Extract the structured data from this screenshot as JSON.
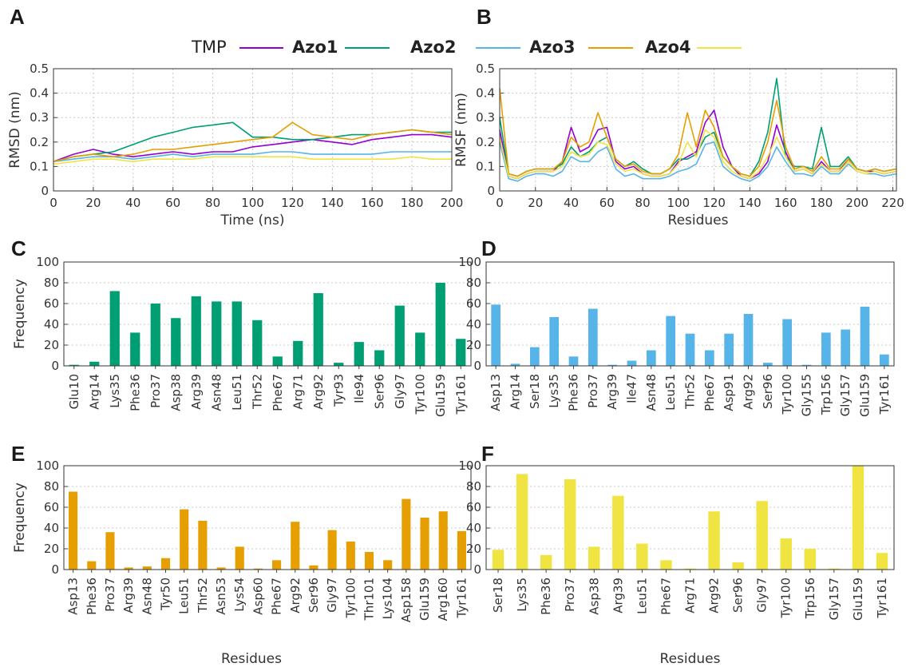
{
  "legend": {
    "entries": [
      {
        "label": "TMP",
        "color": "#9400d3",
        "bold": false
      },
      {
        "label": "Azo1",
        "color": "#009e73",
        "bold": true
      },
      {
        "label": "Azo2",
        "color": "#56b4e9",
        "bold": true
      },
      {
        "label": "Azo3",
        "color": "#e69f00",
        "bold": true
      },
      {
        "label": "Azo4",
        "color": "#f0e442",
        "bold": true
      }
    ]
  },
  "chart_data": [
    {
      "id": "A",
      "panel_label": "A",
      "type": "line",
      "xlabel": "Time (ns)",
      "ylabel": "RMSD (nm)",
      "xlim": [
        0,
        200
      ],
      "ylim": [
        0,
        0.5
      ],
      "xticks": [
        0,
        20,
        40,
        60,
        80,
        100,
        120,
        140,
        160,
        180,
        200
      ],
      "yticks": [
        0,
        0.1,
        0.2,
        0.3,
        0.4,
        0.5
      ],
      "grid": true,
      "x": [
        0,
        10,
        20,
        30,
        40,
        50,
        60,
        70,
        80,
        90,
        100,
        110,
        120,
        130,
        140,
        150,
        160,
        170,
        180,
        190,
        200
      ],
      "series": [
        {
          "name": "TMP",
          "color": "#9400d3",
          "values": [
            0.12,
            0.15,
            0.17,
            0.15,
            0.14,
            0.15,
            0.16,
            0.15,
            0.16,
            0.16,
            0.18,
            0.19,
            0.2,
            0.21,
            0.2,
            0.19,
            0.21,
            0.22,
            0.23,
            0.23,
            0.22
          ]
        },
        {
          "name": "Azo1",
          "color": "#009e73",
          "values": [
            0.12,
            0.14,
            0.15,
            0.16,
            0.19,
            0.22,
            0.24,
            0.26,
            0.27,
            0.28,
            0.22,
            0.22,
            0.21,
            0.21,
            0.22,
            0.23,
            0.23,
            0.24,
            0.25,
            0.24,
            0.24
          ]
        },
        {
          "name": "Azo2",
          "color": "#56b4e9",
          "values": [
            0.12,
            0.13,
            0.14,
            0.14,
            0.13,
            0.14,
            0.15,
            0.14,
            0.15,
            0.15,
            0.15,
            0.16,
            0.16,
            0.15,
            0.15,
            0.15,
            0.15,
            0.16,
            0.16,
            0.16,
            0.16
          ]
        },
        {
          "name": "Azo3",
          "color": "#e69f00",
          "values": [
            0.12,
            0.14,
            0.15,
            0.14,
            0.15,
            0.17,
            0.17,
            0.18,
            0.19,
            0.2,
            0.21,
            0.22,
            0.28,
            0.23,
            0.22,
            0.21,
            0.23,
            0.24,
            0.25,
            0.24,
            0.23
          ]
        },
        {
          "name": "Azo4",
          "color": "#f0e442",
          "values": [
            0.11,
            0.12,
            0.13,
            0.13,
            0.12,
            0.13,
            0.13,
            0.13,
            0.14,
            0.14,
            0.14,
            0.14,
            0.14,
            0.13,
            0.13,
            0.13,
            0.13,
            0.13,
            0.14,
            0.13,
            0.13
          ]
        }
      ]
    },
    {
      "id": "B",
      "panel_label": "B",
      "type": "line",
      "xlabel": "Residues",
      "ylabel": "RMSF (nm)",
      "xlim": [
        0,
        222
      ],
      "ylim": [
        0,
        0.5
      ],
      "xticks": [
        0,
        20,
        40,
        60,
        80,
        100,
        120,
        140,
        160,
        180,
        200,
        220
      ],
      "yticks": [
        0,
        0.1,
        0.2,
        0.3,
        0.4,
        0.5
      ],
      "grid": true,
      "x": [
        0,
        5,
        10,
        15,
        20,
        25,
        30,
        35,
        40,
        45,
        50,
        55,
        60,
        65,
        70,
        75,
        80,
        85,
        90,
        95,
        100,
        105,
        110,
        115,
        120,
        125,
        130,
        135,
        140,
        145,
        150,
        155,
        160,
        165,
        170,
        175,
        180,
        185,
        190,
        195,
        200,
        205,
        210,
        215,
        222
      ],
      "series": [
        {
          "name": "TMP",
          "color": "#9400d3",
          "values": [
            0.25,
            0.06,
            0.05,
            0.07,
            0.08,
            0.08,
            0.08,
            0.12,
            0.26,
            0.16,
            0.18,
            0.25,
            0.26,
            0.12,
            0.09,
            0.1,
            0.07,
            0.06,
            0.06,
            0.07,
            0.12,
            0.14,
            0.16,
            0.28,
            0.33,
            0.18,
            0.1,
            0.06,
            0.05,
            0.07,
            0.12,
            0.27,
            0.16,
            0.08,
            0.09,
            0.07,
            0.12,
            0.08,
            0.08,
            0.13,
            0.09,
            0.08,
            0.08,
            0.07,
            0.08
          ]
        },
        {
          "name": "Azo1",
          "color": "#009e73",
          "values": [
            0.3,
            0.07,
            0.06,
            0.08,
            0.09,
            0.09,
            0.09,
            0.11,
            0.18,
            0.14,
            0.16,
            0.2,
            0.22,
            0.13,
            0.1,
            0.12,
            0.09,
            0.07,
            0.07,
            0.09,
            0.13,
            0.13,
            0.15,
            0.22,
            0.24,
            0.14,
            0.1,
            0.07,
            0.06,
            0.12,
            0.24,
            0.46,
            0.14,
            0.1,
            0.1,
            0.09,
            0.26,
            0.1,
            0.1,
            0.14,
            0.09,
            0.08,
            0.09,
            0.08,
            0.09
          ]
        },
        {
          "name": "Azo2",
          "color": "#56b4e9",
          "values": [
            0.2,
            0.05,
            0.04,
            0.06,
            0.07,
            0.07,
            0.06,
            0.08,
            0.14,
            0.12,
            0.12,
            0.16,
            0.18,
            0.09,
            0.06,
            0.07,
            0.05,
            0.05,
            0.05,
            0.06,
            0.08,
            0.09,
            0.11,
            0.19,
            0.2,
            0.1,
            0.07,
            0.05,
            0.04,
            0.06,
            0.1,
            0.18,
            0.12,
            0.07,
            0.07,
            0.06,
            0.1,
            0.07,
            0.07,
            0.11,
            0.08,
            0.07,
            0.07,
            0.06,
            0.07
          ]
        },
        {
          "name": "Azo3",
          "color": "#e69f00",
          "values": [
            0.42,
            0.07,
            0.06,
            0.08,
            0.09,
            0.09,
            0.09,
            0.12,
            0.22,
            0.18,
            0.2,
            0.32,
            0.22,
            0.13,
            0.1,
            0.11,
            0.08,
            0.07,
            0.07,
            0.09,
            0.15,
            0.32,
            0.18,
            0.33,
            0.26,
            0.14,
            0.1,
            0.07,
            0.06,
            0.1,
            0.2,
            0.37,
            0.18,
            0.09,
            0.1,
            0.08,
            0.14,
            0.09,
            0.09,
            0.13,
            0.09,
            0.08,
            0.09,
            0.08,
            0.09
          ]
        },
        {
          "name": "Azo4",
          "color": "#f0e442",
          "values": [
            0.22,
            0.06,
            0.05,
            0.07,
            0.08,
            0.08,
            0.08,
            0.1,
            0.16,
            0.14,
            0.15,
            0.2,
            0.19,
            0.11,
            0.08,
            0.09,
            0.07,
            0.06,
            0.06,
            0.07,
            0.11,
            0.2,
            0.14,
            0.25,
            0.22,
            0.12,
            0.08,
            0.06,
            0.05,
            0.08,
            0.14,
            0.22,
            0.14,
            0.08,
            0.09,
            0.07,
            0.11,
            0.08,
            0.08,
            0.12,
            0.08,
            0.07,
            0.08,
            0.07,
            0.08
          ]
        }
      ]
    },
    {
      "id": "C",
      "panel_label": "C",
      "type": "bar",
      "ylabel": "Frequency",
      "xlabel": "",
      "ylim": [
        0,
        100
      ],
      "yticks": [
        0,
        20,
        40,
        60,
        80,
        100
      ],
      "grid": true,
      "color": "#009e73",
      "categories": [
        "Glu10",
        "Arg14",
        "Lys35",
        "Phe36",
        "Pro37",
        "Asp38",
        "Arg39",
        "Asn48",
        "Leu51",
        "Thr52",
        "Phe67",
        "Arg71",
        "Arg92",
        "Tyr93",
        "Ile94",
        "Ser96",
        "Gly97",
        "Tyr100",
        "Glu159",
        "Tyr161"
      ],
      "values": [
        1,
        4,
        72,
        32,
        60,
        46,
        67,
        62,
        62,
        44,
        9,
        24,
        70,
        3,
        23,
        15,
        58,
        32,
        80,
        26
      ]
    },
    {
      "id": "D",
      "panel_label": "D",
      "type": "bar",
      "ylabel": "",
      "xlabel": "",
      "ylim": [
        0,
        100
      ],
      "yticks": [
        0,
        20,
        40,
        60,
        80,
        100
      ],
      "grid": true,
      "color": "#56b4e9",
      "categories": [
        "Asp13",
        "Arg14",
        "Ser18",
        "Lys35",
        "Phe36",
        "Pro37",
        "Arg39",
        "Ile47",
        "Asn48",
        "Leu51",
        "Thr52",
        "Phe67",
        "Asp91",
        "Arg92",
        "Ser96",
        "Tyr100",
        "Gly155",
        "Trp156",
        "Gly157",
        "Glu159",
        "Tyr161"
      ],
      "values": [
        59,
        2,
        18,
        47,
        9,
        55,
        1,
        5,
        15,
        48,
        31,
        15,
        31,
        50,
        3,
        45,
        1,
        32,
        35,
        57,
        11
      ]
    },
    {
      "id": "E",
      "panel_label": "E",
      "type": "bar",
      "ylabel": "Frequency",
      "xlabel": "Residues",
      "ylim": [
        0,
        100
      ],
      "yticks": [
        0,
        20,
        40,
        60,
        80,
        100
      ],
      "grid": true,
      "color": "#e69f00",
      "categories": [
        "Asp13",
        "Phe36",
        "Pro37",
        "Arg39",
        "Asn48",
        "Tyr50",
        "Leu51",
        "Thr52",
        "Asn53",
        "Lys54",
        "Asp60",
        "Phe67",
        "Arg92",
        "Ser96",
        "Gly97",
        "Tyr100",
        "Thr101",
        "Lys104",
        "Asp158",
        "Glu159",
        "Arg160",
        "Tyr161"
      ],
      "values": [
        75,
        8,
        36,
        2,
        3,
        11,
        58,
        47,
        2,
        22,
        1,
        9,
        46,
        4,
        38,
        27,
        17,
        9,
        68,
        50,
        56,
        37
      ]
    },
    {
      "id": "F",
      "panel_label": "F",
      "type": "bar",
      "ylabel": "",
      "xlabel": "Residues",
      "ylim": [
        0,
        100
      ],
      "yticks": [
        0,
        20,
        40,
        60,
        80,
        100
      ],
      "grid": true,
      "color": "#f0e442",
      "categories": [
        "Ser18",
        "Lys35",
        "Phe36",
        "Pro37",
        "Asp38",
        "Arg39",
        "Leu51",
        "Phe67",
        "Arg71",
        "Arg92",
        "Ser96",
        "Gly97",
        "Tyr100",
        "Trp156",
        "Gly157",
        "Glu159",
        "Tyr161"
      ],
      "values": [
        19,
        92,
        14,
        87,
        22,
        71,
        25,
        9,
        1,
        56,
        7,
        66,
        30,
        20,
        1,
        100,
        16
      ]
    }
  ]
}
